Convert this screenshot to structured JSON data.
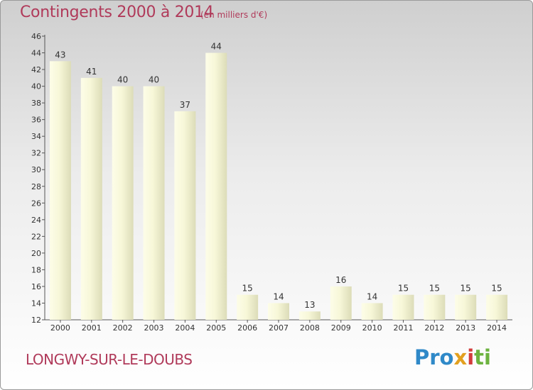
{
  "title": "Contingents 2000 à 2014",
  "units_note": "(en milliers d'€)",
  "location": "LONGWY-SUR-LE-DOUBS",
  "logo": {
    "p1": "Pro",
    "p2": "x",
    "p3": "i",
    "p4": "ti"
  },
  "colors": {
    "title": "#b03a5a",
    "bar_light": "#fdfde8",
    "bar_dark": "#dcdcb8",
    "axis": "#555555"
  },
  "chart_data": {
    "type": "bar",
    "title": "Contingents 2000 à 2014",
    "subtitle": "(en milliers d'€)",
    "categories": [
      "2000",
      "2001",
      "2002",
      "2003",
      "2004",
      "2005",
      "2006",
      "2007",
      "2008",
      "2009",
      "2010",
      "2011",
      "2012",
      "2013",
      "2014"
    ],
    "values": [
      43,
      41,
      40,
      40,
      37,
      44,
      15,
      14,
      13,
      16,
      14,
      15,
      15,
      15,
      15
    ],
    "ylim": [
      12,
      46
    ],
    "yticks": [
      12,
      14,
      16,
      18,
      20,
      22,
      24,
      26,
      28,
      30,
      32,
      34,
      36,
      38,
      40,
      42,
      44,
      46
    ],
    "grid": false,
    "legend": "none"
  }
}
